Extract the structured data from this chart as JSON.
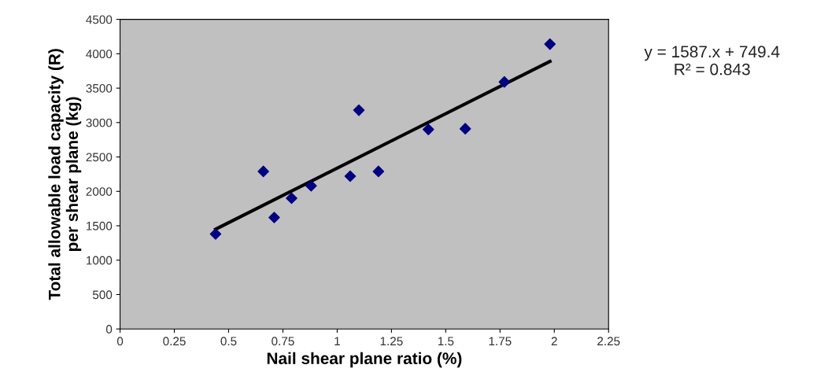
{
  "chart_data": {
    "type": "scatter",
    "xlabel": "Nail shear plane ratio (%)",
    "ylabel": "Total allowable load capacity (R)\nper shear plane (kg)",
    "annotations": [
      "y = 1587.x + 749.4\nR² = 0.843"
    ],
    "xlim": [
      0,
      2.25
    ],
    "xticks": [
      0,
      0.25,
      0.5,
      0.75,
      1,
      1.25,
      1.5,
      1.75,
      2,
      2.25
    ],
    "ylim": [
      0,
      4500
    ],
    "yticks": [
      0,
      500,
      1000,
      1500,
      2000,
      2500,
      3000,
      3500,
      4000,
      4500
    ],
    "grid": false,
    "series": [
      {
        "marker": "diamond",
        "color": "#000080",
        "x": [
          0.44,
          0.66,
          0.71,
          0.79,
          0.88,
          1.06,
          1.1,
          1.19,
          1.42,
          1.59,
          1.77,
          1.98
        ],
        "values": [
          1380,
          2290,
          1620,
          1900,
          2080,
          2220,
          3180,
          2290,
          2900,
          2910,
          3590,
          4140
        ]
      },
      {
        "type": "line",
        "color": "#000000",
        "x": [
          0.44,
          1.98
        ],
        "values": [
          1450,
          3890
        ],
        "marker": "none"
      }
    ]
  }
}
